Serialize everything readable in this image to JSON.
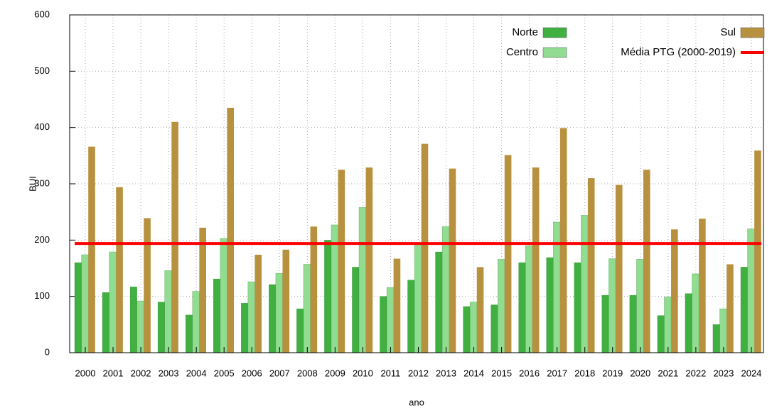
{
  "chart_data": {
    "type": "bar",
    "y_label": "BUI",
    "x_label": "ano",
    "categories": [
      "2000",
      "2001",
      "2002",
      "2003",
      "2004",
      "2005",
      "2006",
      "2007",
      "2008",
      "2009",
      "2010",
      "2011",
      "2012",
      "2013",
      "2014",
      "2015",
      "2016",
      "2017",
      "2018",
      "2019",
      "2020",
      "2021",
      "2022",
      "2023",
      "2024"
    ],
    "series": [
      {
        "name": "Norte",
        "color": "#40b040",
        "values": [
          160,
          107,
          117,
          90,
          67,
          131,
          88,
          121,
          78,
          200,
          152,
          100,
          129,
          179,
          82,
          85,
          160,
          169,
          160,
          102,
          102,
          66,
          105,
          50,
          152
        ]
      },
      {
        "name": "Centro",
        "color": "#90dc90",
        "values": [
          174,
          179,
          92,
          146,
          109,
          203,
          126,
          141,
          157,
          227,
          258,
          116,
          192,
          224,
          90,
          166,
          190,
          232,
          244,
          167,
          166,
          99,
          140,
          78,
          220
        ]
      },
      {
        "name": "Sul",
        "color": "#b8913f",
        "values": [
          366,
          294,
          239,
          410,
          222,
          435,
          174,
          183,
          224,
          325,
          329,
          167,
          371,
          327,
          152,
          351,
          329,
          399,
          310,
          298,
          325,
          219,
          238,
          157,
          359
        ]
      }
    ],
    "reference_line": {
      "name": "Média PTG (2000-2019)",
      "value": 194,
      "color": "#ff0000"
    },
    "ylim": [
      0,
      600
    ],
    "yticks": [
      0,
      100,
      200,
      300,
      400,
      500,
      600
    ],
    "grid": true,
    "legend": "top-right"
  }
}
